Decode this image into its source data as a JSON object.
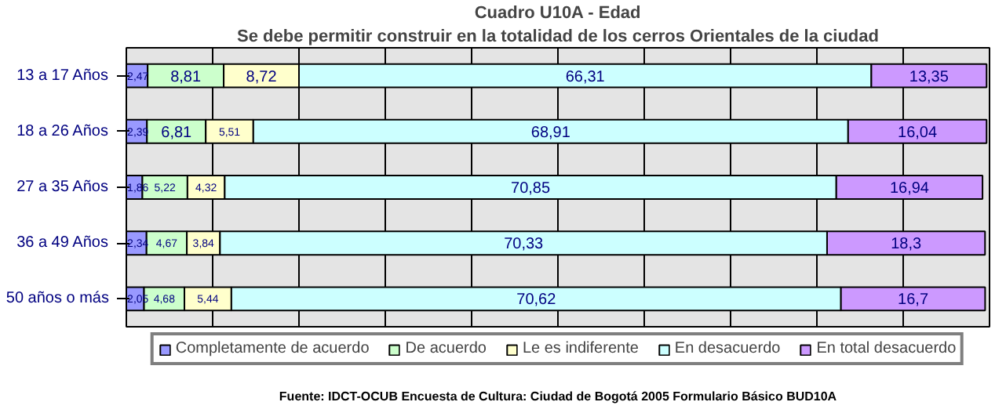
{
  "chart_data": {
    "type": "bar",
    "orientation": "horizontal",
    "stacked": true,
    "title": "Cuadro U10A - Edad",
    "subtitle": "Se debe permitir construir en la totalidad de los cerros Orientales de la ciudad",
    "categories": [
      "13 a 17 Años",
      "18 a 26 Años",
      "27 a 35 Años",
      "36 a 49 Años",
      "50 años o más"
    ],
    "series": [
      {
        "name": "Completamente de acuerdo",
        "color": "#9999ff",
        "values": [
          2.47,
          2.39,
          1.86,
          2.34,
          2.05
        ],
        "value_labels": [
          "2,47",
          "2,39",
          "1,86",
          "2,34",
          "2,05"
        ]
      },
      {
        "name": "De acuerdo",
        "color": "#ccffcc",
        "values": [
          8.81,
          6.81,
          5.22,
          4.67,
          4.68
        ],
        "value_labels": [
          "8,81",
          "6,81",
          "5,22",
          "4,67",
          "4,68"
        ]
      },
      {
        "name": "Le es indiferente",
        "color": "#ffffcc",
        "values": [
          8.72,
          5.51,
          4.32,
          3.84,
          5.44
        ],
        "value_labels": [
          "8,72",
          "5,51",
          "4,32",
          "3,84",
          "5,44"
        ]
      },
      {
        "name": "En desacuerdo",
        "color": "#ccffff",
        "values": [
          66.31,
          68.91,
          70.85,
          70.33,
          70.62
        ],
        "value_labels": [
          "66,31",
          "68,91",
          "70,85",
          "70,33",
          "70,62"
        ]
      },
      {
        "name": "En total desacuerdo",
        "color": "#cc99ff",
        "values": [
          13.35,
          16.04,
          16.94,
          18.3,
          16.7
        ],
        "value_labels": [
          "13,35",
          "16,04",
          "16,94",
          "18,3",
          "16,7"
        ]
      }
    ],
    "xlim": [
      0,
      100
    ],
    "xticks": [
      {
        "value": 0,
        "label": null
      },
      {
        "value": 10,
        "label": null
      },
      {
        "value": 20,
        "label": null
      },
      {
        "value": 30,
        "label": null
      },
      {
        "value": 40,
        "label": null
      },
      {
        "value": 50,
        "label": null
      },
      {
        "value": 60,
        "label": null
      },
      {
        "value": 70,
        "label": null
      },
      {
        "value": 80,
        "label": null
      },
      {
        "value": 90,
        "label": null
      },
      {
        "value": 100,
        "label": null
      }
    ],
    "tick_labels": "y",
    "grid": "x",
    "legend": "bottom",
    "annotations": [
      "Fuente: IDCT-OCUB Encuesta de Cultura: Ciudad de Bogotá 2005 Formulario Básico BUD10A"
    ]
  }
}
